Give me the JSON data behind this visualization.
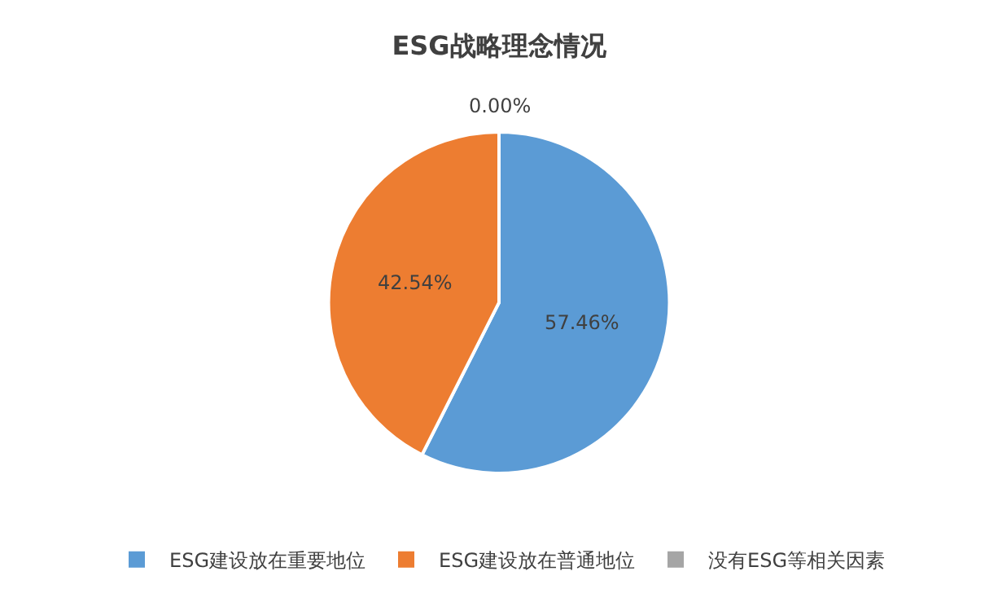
{
  "chart_data": {
    "type": "pie",
    "title": "ESG战略理念情况",
    "categories": [
      "ESG建设放在重要地位",
      "ESG建设放在普通地位",
      "没有ESG等相关因素"
    ],
    "values": [
      57.46,
      42.54,
      0.0
    ],
    "colors": [
      "#5b9bd5",
      "#ed7d31",
      "#a5a5a5"
    ],
    "value_labels": [
      "57.46%",
      "42.54%",
      "0.00%"
    ],
    "legend": "bottom"
  }
}
